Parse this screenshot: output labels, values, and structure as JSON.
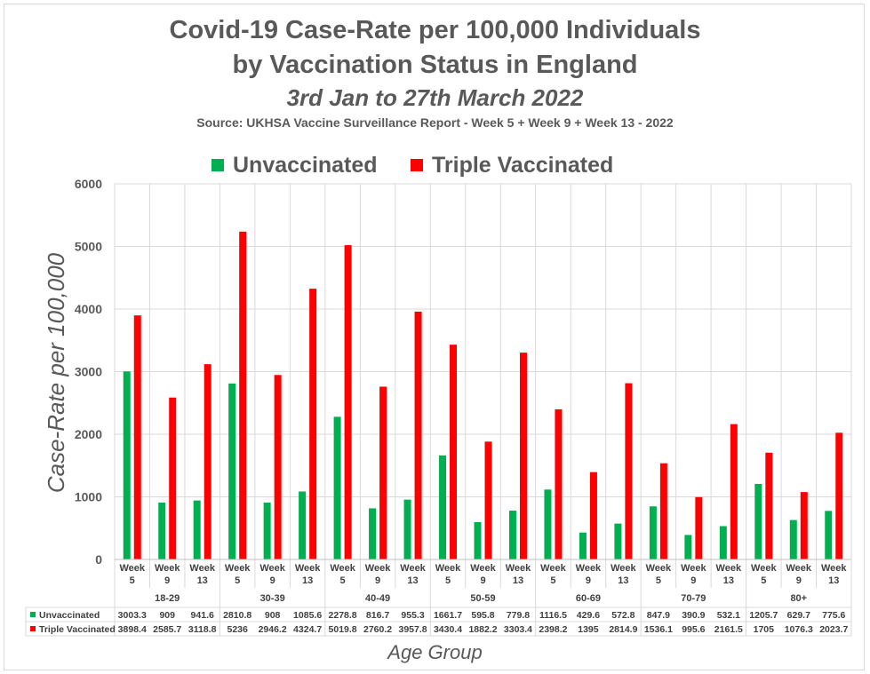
{
  "chart_data": {
    "type": "bar",
    "title": "Covid-19 Case-Rate per 100,000 Individuals",
    "title_line2": "by Vaccination Status in England",
    "subtitle": "3rd Jan to 27th March 2022",
    "source": "Source: UKHSA Vaccine Surveillance Report - Week 5 + Week 9 + Week 13 - 2022",
    "ylabel": "Case-Rate per 100,000",
    "xlabel": "Age Group",
    "ylim": [
      0,
      6000
    ],
    "yticks": [
      "0",
      "1000",
      "2000",
      "3000",
      "4000",
      "5000",
      "6000"
    ],
    "grid": true,
    "legend_position": "top",
    "groups": [
      "18-29",
      "30-39",
      "40-49",
      "50-59",
      "60-69",
      "70-79",
      "80+"
    ],
    "categories": [
      [
        "Week",
        "5"
      ],
      [
        "Week",
        "9"
      ],
      [
        "Week",
        "13"
      ],
      [
        "Week",
        "5"
      ],
      [
        "Week",
        "9"
      ],
      [
        "Week",
        "13"
      ],
      [
        "Week",
        "5"
      ],
      [
        "Week",
        "9"
      ],
      [
        "Week",
        "13"
      ],
      [
        "Week",
        "5"
      ],
      [
        "Week",
        "9"
      ],
      [
        "Week",
        "13"
      ],
      [
        "Week",
        "5"
      ],
      [
        "Week",
        "9"
      ],
      [
        "Week",
        "13"
      ],
      [
        "Week",
        "5"
      ],
      [
        "Week",
        "9"
      ],
      [
        "Week",
        "13"
      ],
      [
        "Week",
        "5"
      ],
      [
        "Week",
        "9"
      ],
      [
        "Week",
        "13"
      ]
    ],
    "series": [
      {
        "name": "Unvaccinated",
        "color": "#00b050",
        "values": [
          3003.3,
          909,
          941.6,
          2810.8,
          908,
          1085.6,
          2278.8,
          816.7,
          955.3,
          1661.7,
          595.8,
          779.8,
          1116.5,
          429.6,
          572.8,
          847.9,
          390.9,
          532.1,
          1205.7,
          629.7,
          775.6
        ],
        "labels": [
          "3003.3",
          "909",
          "941.6",
          "2810.8",
          "908",
          "1085.6",
          "2278.8",
          "816.7",
          "955.3",
          "1661.7",
          "595.8",
          "779.8",
          "1116.5",
          "429.6",
          "572.8",
          "847.9",
          "390.9",
          "532.1",
          "1205.7",
          "629.7",
          "775.6"
        ]
      },
      {
        "name": "Triple Vaccinated",
        "color": "#ff0000",
        "values": [
          3898.4,
          2585.7,
          3118.8,
          5236,
          2946.2,
          4324.7,
          5019.8,
          2760.2,
          3957.8,
          3430.4,
          1882.2,
          3303.4,
          2398.2,
          1395,
          2814.9,
          1536.1,
          995.6,
          2161.5,
          1705,
          1076.3,
          2023.7
        ],
        "labels": [
          "3898.4",
          "2585.7",
          "3118.8",
          "5236",
          "2946.2",
          "4324.7",
          "5019.8",
          "2760.2",
          "3957.8",
          "3430.4",
          "1882.2",
          "3303.4",
          "2398.2",
          "1395",
          "2814.9",
          "1536.1",
          "995.6",
          "2161.5",
          "1705",
          "1076.3",
          "2023.7"
        ]
      }
    ]
  }
}
